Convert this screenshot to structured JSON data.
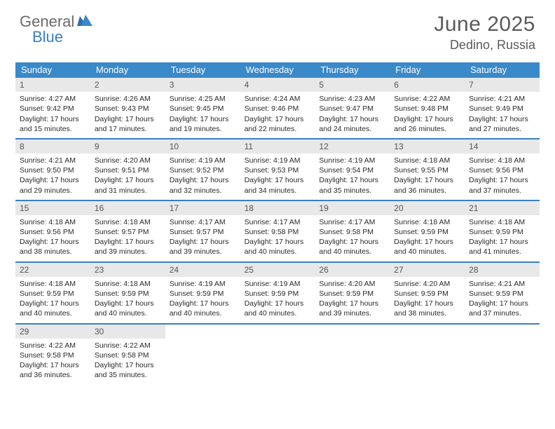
{
  "logo": {
    "text1": "General",
    "text2": "Blue"
  },
  "title": "June 2025",
  "location": "Dedino, Russia",
  "colors": {
    "header_bar": "#3a89c9",
    "accent": "#3a7fc4",
    "day_number_bg": "#e8e8e8",
    "text_dark": "#2a2a2a",
    "text_muted": "#5a5a5a"
  },
  "weekdays": [
    "Sunday",
    "Monday",
    "Tuesday",
    "Wednesday",
    "Thursday",
    "Friday",
    "Saturday"
  ],
  "weeks": [
    [
      {
        "n": "1",
        "sr": "4:27 AM",
        "ss": "9:42 PM",
        "dl1": "17 hours",
        "dl2": "and 15 minutes."
      },
      {
        "n": "2",
        "sr": "4:26 AM",
        "ss": "9:43 PM",
        "dl1": "17 hours",
        "dl2": "and 17 minutes."
      },
      {
        "n": "3",
        "sr": "4:25 AM",
        "ss": "9:45 PM",
        "dl1": "17 hours",
        "dl2": "and 19 minutes."
      },
      {
        "n": "4",
        "sr": "4:24 AM",
        "ss": "9:46 PM",
        "dl1": "17 hours",
        "dl2": "and 22 minutes."
      },
      {
        "n": "5",
        "sr": "4:23 AM",
        "ss": "9:47 PM",
        "dl1": "17 hours",
        "dl2": "and 24 minutes."
      },
      {
        "n": "6",
        "sr": "4:22 AM",
        "ss": "9:48 PM",
        "dl1": "17 hours",
        "dl2": "and 26 minutes."
      },
      {
        "n": "7",
        "sr": "4:21 AM",
        "ss": "9:49 PM",
        "dl1": "17 hours",
        "dl2": "and 27 minutes."
      }
    ],
    [
      {
        "n": "8",
        "sr": "4:21 AM",
        "ss": "9:50 PM",
        "dl1": "17 hours",
        "dl2": "and 29 minutes."
      },
      {
        "n": "9",
        "sr": "4:20 AM",
        "ss": "9:51 PM",
        "dl1": "17 hours",
        "dl2": "and 31 minutes."
      },
      {
        "n": "10",
        "sr": "4:19 AM",
        "ss": "9:52 PM",
        "dl1": "17 hours",
        "dl2": "and 32 minutes."
      },
      {
        "n": "11",
        "sr": "4:19 AM",
        "ss": "9:53 PM",
        "dl1": "17 hours",
        "dl2": "and 34 minutes."
      },
      {
        "n": "12",
        "sr": "4:19 AM",
        "ss": "9:54 PM",
        "dl1": "17 hours",
        "dl2": "and 35 minutes."
      },
      {
        "n": "13",
        "sr": "4:18 AM",
        "ss": "9:55 PM",
        "dl1": "17 hours",
        "dl2": "and 36 minutes."
      },
      {
        "n": "14",
        "sr": "4:18 AM",
        "ss": "9:56 PM",
        "dl1": "17 hours",
        "dl2": "and 37 minutes."
      }
    ],
    [
      {
        "n": "15",
        "sr": "4:18 AM",
        "ss": "9:56 PM",
        "dl1": "17 hours",
        "dl2": "and 38 minutes."
      },
      {
        "n": "16",
        "sr": "4:18 AM",
        "ss": "9:57 PM",
        "dl1": "17 hours",
        "dl2": "and 39 minutes."
      },
      {
        "n": "17",
        "sr": "4:17 AM",
        "ss": "9:57 PM",
        "dl1": "17 hours",
        "dl2": "and 39 minutes."
      },
      {
        "n": "18",
        "sr": "4:17 AM",
        "ss": "9:58 PM",
        "dl1": "17 hours",
        "dl2": "and 40 minutes."
      },
      {
        "n": "19",
        "sr": "4:17 AM",
        "ss": "9:58 PM",
        "dl1": "17 hours",
        "dl2": "and 40 minutes."
      },
      {
        "n": "20",
        "sr": "4:18 AM",
        "ss": "9:59 PM",
        "dl1": "17 hours",
        "dl2": "and 40 minutes."
      },
      {
        "n": "21",
        "sr": "4:18 AM",
        "ss": "9:59 PM",
        "dl1": "17 hours",
        "dl2": "and 41 minutes."
      }
    ],
    [
      {
        "n": "22",
        "sr": "4:18 AM",
        "ss": "9:59 PM",
        "dl1": "17 hours",
        "dl2": "and 40 minutes."
      },
      {
        "n": "23",
        "sr": "4:18 AM",
        "ss": "9:59 PM",
        "dl1": "17 hours",
        "dl2": "and 40 minutes."
      },
      {
        "n": "24",
        "sr": "4:19 AM",
        "ss": "9:59 PM",
        "dl1": "17 hours",
        "dl2": "and 40 minutes."
      },
      {
        "n": "25",
        "sr": "4:19 AM",
        "ss": "9:59 PM",
        "dl1": "17 hours",
        "dl2": "and 40 minutes."
      },
      {
        "n": "26",
        "sr": "4:20 AM",
        "ss": "9:59 PM",
        "dl1": "17 hours",
        "dl2": "and 39 minutes."
      },
      {
        "n": "27",
        "sr": "4:20 AM",
        "ss": "9:59 PM",
        "dl1": "17 hours",
        "dl2": "and 38 minutes."
      },
      {
        "n": "28",
        "sr": "4:21 AM",
        "ss": "9:59 PM",
        "dl1": "17 hours",
        "dl2": "and 37 minutes."
      }
    ],
    [
      {
        "n": "29",
        "sr": "4:22 AM",
        "ss": "9:58 PM",
        "dl1": "17 hours",
        "dl2": "and 36 minutes."
      },
      {
        "n": "30",
        "sr": "4:22 AM",
        "ss": "9:58 PM",
        "dl1": "17 hours",
        "dl2": "and 35 minutes."
      },
      null,
      null,
      null,
      null,
      null
    ]
  ],
  "labels": {
    "sunrise_prefix": "Sunrise: ",
    "sunset_prefix": "Sunset: ",
    "daylight_prefix": "Daylight: "
  }
}
